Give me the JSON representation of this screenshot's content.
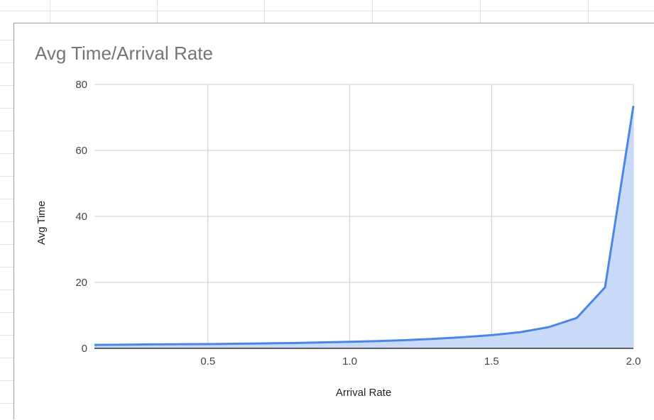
{
  "chart_data": {
    "type": "area",
    "title": "Avg Time/Arrival Rate",
    "xlabel": "Arrival Rate",
    "ylabel": "Avg Time",
    "xlim": [
      0.1,
      2.0
    ],
    "ylim": [
      0,
      80
    ],
    "x_ticks": [
      "0.5",
      "1.0",
      "1.5",
      "2.0"
    ],
    "y_ticks": [
      "0",
      "20",
      "40",
      "60",
      "80"
    ],
    "grid": true,
    "legend": "none",
    "series": [
      {
        "x": [
          0.1,
          0.2,
          0.3,
          0.4,
          0.5,
          0.6,
          0.7,
          0.8,
          0.9,
          1.0,
          1.1,
          1.2,
          1.3,
          1.4,
          1.5,
          1.6,
          1.7,
          1.8,
          1.9,
          2.0
        ],
        "values": [
          1.05,
          1.1,
          1.2,
          1.25,
          1.3,
          1.4,
          1.5,
          1.6,
          1.8,
          2.0,
          2.2,
          2.5,
          2.9,
          3.4,
          4.0,
          4.9,
          6.4,
          9.2,
          18.5,
          73.5
        ]
      }
    ],
    "colors": {
      "line": "#4a86e8",
      "fill": "#c9daf8",
      "grid": "#cccccc",
      "baseline": "#333333"
    }
  }
}
